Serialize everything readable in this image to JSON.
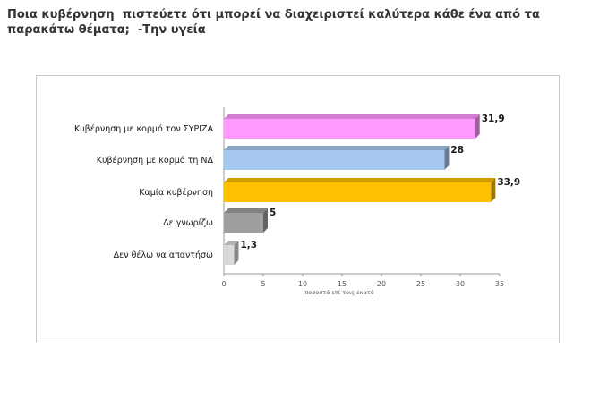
{
  "page": {
    "title": "Ποια κυβέρνηση  πιστεύετε ότι μπορεί να διαχειριστεί καλύτερα κάθε ένα από τα παρακάτω θέματα;  -Την υγεία"
  },
  "chart_data": {
    "type": "bar",
    "orientation": "horizontal",
    "style": "3d",
    "categories": [
      "Κυβέρνηση με κορμό τον ΣΥΡΙΖΑ",
      "Κυβέρνηση με κορμό τη ΝΔ",
      "Καμία κυβέρνηση",
      "Δε γνωρίζω",
      "Δεν θέλω να απαντήσω"
    ],
    "values": [
      31.9,
      28,
      33.9,
      5,
      1.3
    ],
    "value_labels": [
      "31,9",
      "28",
      "33,9",
      "5",
      "1,3"
    ],
    "colors": [
      "#ff99ff",
      "#a6c8ee",
      "#ffc000",
      "#9e9e9e",
      "#dadada"
    ],
    "xlabel": "ποσοστό επί τοις εκατό",
    "xlim": [
      0,
      35
    ],
    "xticks": [
      0,
      5,
      10,
      15,
      20,
      25,
      30,
      35
    ],
    "grid": false,
    "legend": "none"
  }
}
